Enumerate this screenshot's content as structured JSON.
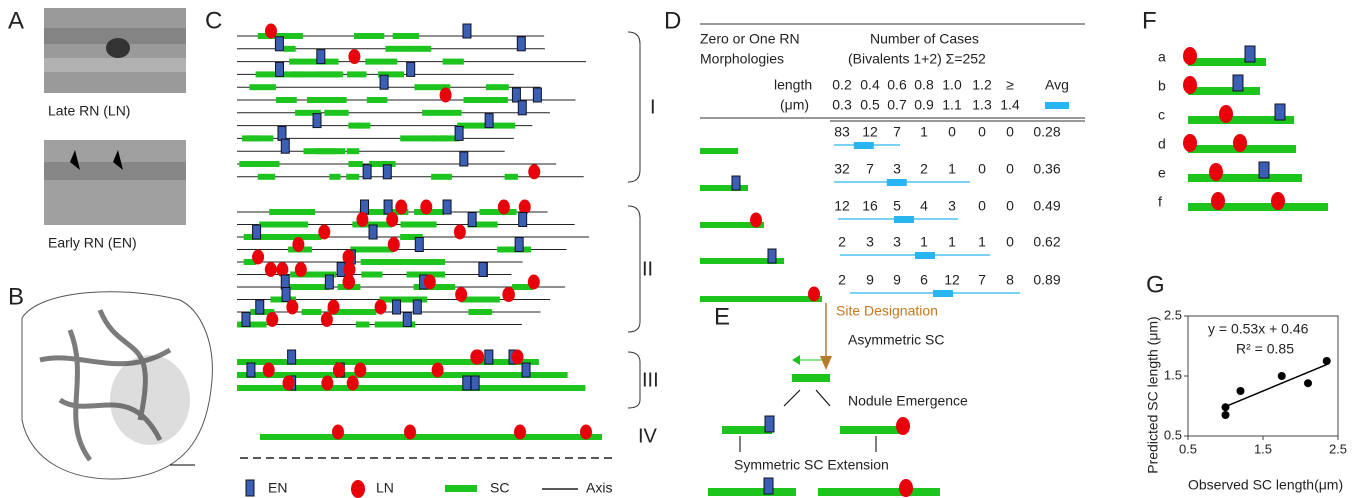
{
  "panels": {
    "A": {
      "label": "A",
      "captions": [
        "Late RN (LN)",
        "Early RN (EN)"
      ]
    },
    "B": {
      "label": "B"
    },
    "C": {
      "label": "C",
      "groups": [
        "I",
        "II",
        "III",
        "IV"
      ],
      "legend": [
        "EN",
        "LN",
        "SC",
        "Axis"
      ]
    },
    "D": {
      "label": "D",
      "header": {
        "morph": [
          "Zero  or One RN",
          "Morphologies"
        ],
        "cases": [
          "Number of Cases",
          "(Bivalents 1+2)  Σ=252"
        ],
        "length": [
          "length",
          "(μm)"
        ],
        "bins_top": [
          "0.2",
          "0.4",
          "0.6",
          "0.8",
          "1.0",
          "1.2",
          "≥"
        ],
        "bins_bottom": [
          "0.3",
          "0.5",
          "0.7",
          "0.9",
          "1.1",
          "1.3",
          "1.4"
        ],
        "avg": "Avg"
      },
      "rows": [
        [
          83,
          12,
          7,
          1,
          0,
          0,
          0,
          0.28
        ],
        [
          32,
          7,
          3,
          2,
          1,
          0,
          0,
          0.36
        ],
        [
          12,
          16,
          5,
          4,
          3,
          0,
          0,
          0.49
        ],
        [
          2,
          3,
          3,
          1,
          1,
          1,
          0,
          0.62
        ],
        [
          2,
          9,
          9,
          6,
          12,
          7,
          8,
          0.89
        ]
      ]
    },
    "E": {
      "label": "E",
      "texts": [
        "Site Designation",
        "Asymmetric SC",
        "Nodule Emergence",
        "Symmetric SC Extension"
      ]
    },
    "F": {
      "label": "F",
      "rows": [
        "a",
        "b",
        "c",
        "d",
        "e",
        "f"
      ]
    }
  },
  "chart_data": {
    "type": "scatter",
    "panel_label": "G",
    "equation": "y = 0.53x + 0.46",
    "r_squared": "R² = 0.85",
    "xlabel": "Observed SC length(μm)",
    "ylabel": "Predicted SC length (μm)",
    "x": [
      1.0,
      1.0,
      1.2,
      1.75,
      2.1,
      2.35
    ],
    "values": [
      0.85,
      0.98,
      1.25,
      1.5,
      1.38,
      1.75
    ],
    "xlim": [
      0.5,
      2.5
    ],
    "ylim": [
      0.5,
      2.5
    ],
    "xticks": [
      0.5,
      1.5,
      2.5
    ],
    "yticks": [
      0.5,
      1.5,
      2.5
    ],
    "color": "#000000",
    "trendline": true
  }
}
